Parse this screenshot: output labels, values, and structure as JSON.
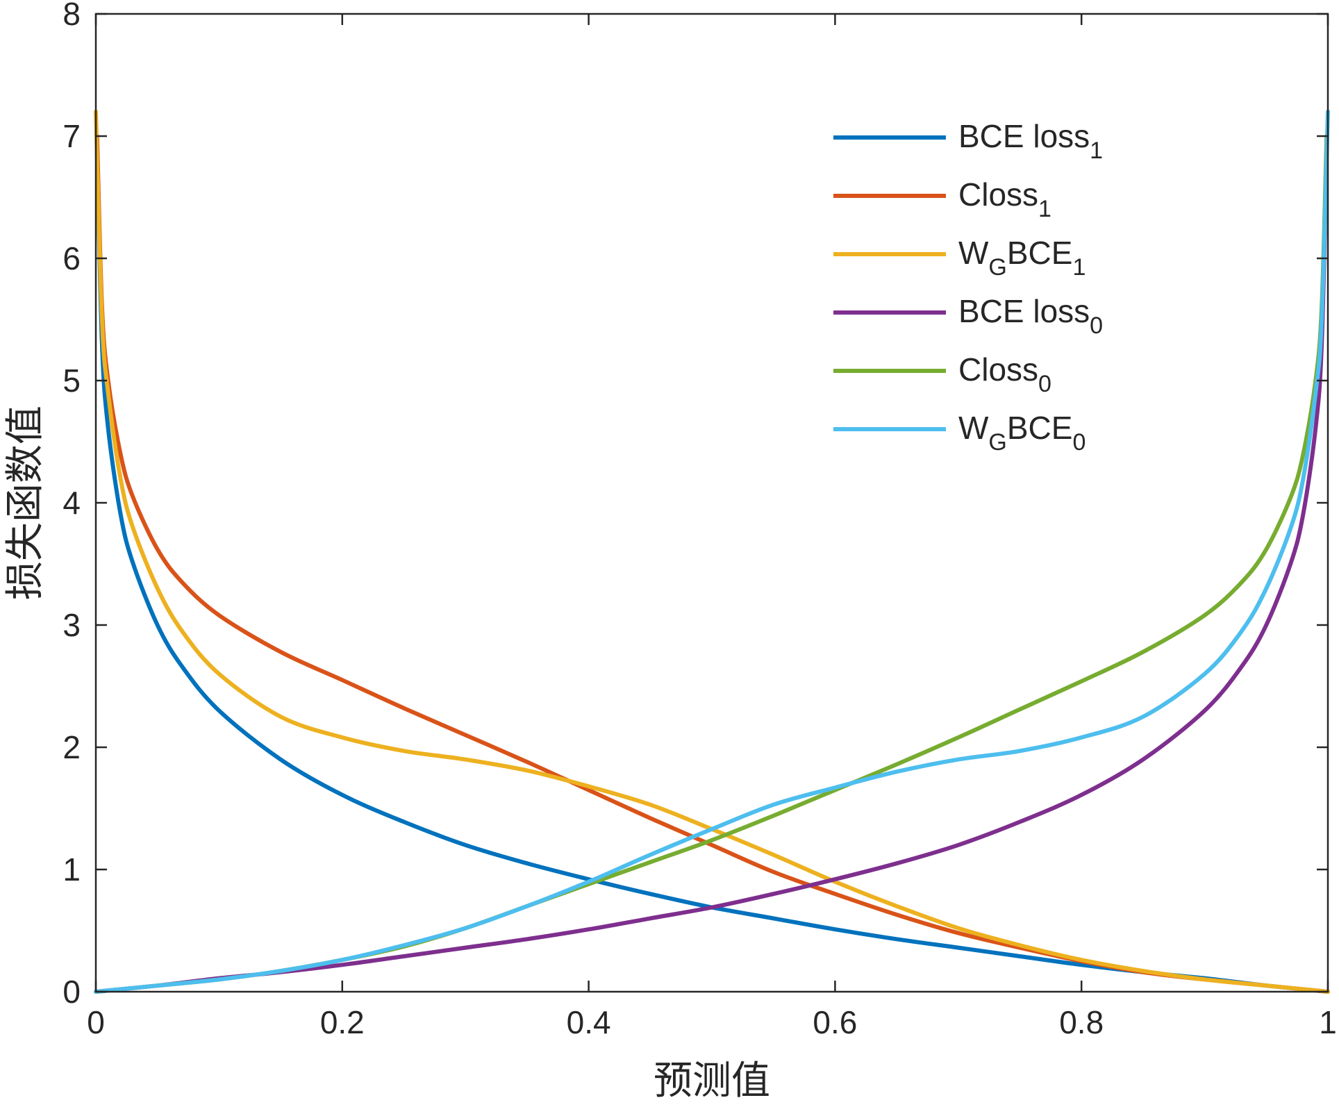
{
  "chart_data": {
    "type": "line",
    "xlabel": "预测值",
    "ylabel": "损失函数值",
    "xlim": [
      0,
      1
    ],
    "ylim": [
      0,
      8
    ],
    "x_ticks": [
      0,
      0.2,
      0.4,
      0.6,
      0.8,
      1
    ],
    "x_tick_labels": [
      "0",
      "0.2",
      "0.4",
      "0.6",
      "0.8",
      "1"
    ],
    "y_ticks": [
      0,
      1,
      2,
      3,
      4,
      5,
      6,
      7,
      8
    ],
    "y_tick_labels": [
      "0",
      "1",
      "2",
      "3",
      "4",
      "5",
      "6",
      "7",
      "8"
    ],
    "grid": false,
    "legend_position": "top-right",
    "series": [
      {
        "name": "BCE loss",
        "sub": "1",
        "color": "#0072BD",
        "points": [
          [
            0.001,
            6.91
          ],
          [
            0.005,
            5.3
          ],
          [
            0.01,
            4.61
          ],
          [
            0.02,
            3.91
          ],
          [
            0.03,
            3.51
          ],
          [
            0.05,
            3.0
          ],
          [
            0.07,
            2.66
          ],
          [
            0.1,
            2.3
          ],
          [
            0.15,
            1.9
          ],
          [
            0.2,
            1.61
          ],
          [
            0.25,
            1.39
          ],
          [
            0.3,
            1.2
          ],
          [
            0.35,
            1.05
          ],
          [
            0.4,
            0.92
          ],
          [
            0.45,
            0.8
          ],
          [
            0.5,
            0.69
          ],
          [
            0.55,
            0.6
          ],
          [
            0.6,
            0.51
          ],
          [
            0.65,
            0.43
          ],
          [
            0.7,
            0.36
          ],
          [
            0.75,
            0.29
          ],
          [
            0.8,
            0.22
          ],
          [
            0.85,
            0.16
          ],
          [
            0.9,
            0.11
          ],
          [
            0.95,
            0.05
          ],
          [
            1.0,
            0.0
          ]
        ]
      },
      {
        "name": "Closs",
        "sub": "1",
        "color": "#D95319",
        "points": [
          [
            0.001,
            7.0
          ],
          [
            0.005,
            5.6
          ],
          [
            0.01,
            5.0
          ],
          [
            0.02,
            4.4
          ],
          [
            0.03,
            4.05
          ],
          [
            0.05,
            3.62
          ],
          [
            0.07,
            3.35
          ],
          [
            0.1,
            3.08
          ],
          [
            0.15,
            2.78
          ],
          [
            0.2,
            2.55
          ],
          [
            0.25,
            2.32
          ],
          [
            0.3,
            2.1
          ],
          [
            0.35,
            1.88
          ],
          [
            0.4,
            1.65
          ],
          [
            0.45,
            1.42
          ],
          [
            0.5,
            1.2
          ],
          [
            0.55,
            0.98
          ],
          [
            0.6,
            0.8
          ],
          [
            0.65,
            0.63
          ],
          [
            0.7,
            0.48
          ],
          [
            0.75,
            0.36
          ],
          [
            0.8,
            0.25
          ],
          [
            0.85,
            0.16
          ],
          [
            0.9,
            0.1
          ],
          [
            0.95,
            0.05
          ],
          [
            1.0,
            0.0
          ]
        ]
      },
      {
        "name": "W",
        "mid": "G",
        "tail": "BCE",
        "sub": "1",
        "color": "#EDB120",
        "points": [
          [
            0.0,
            7.2
          ],
          [
            0.005,
            5.5
          ],
          [
            0.01,
            4.9
          ],
          [
            0.02,
            4.2
          ],
          [
            0.03,
            3.8
          ],
          [
            0.05,
            3.3
          ],
          [
            0.07,
            2.95
          ],
          [
            0.1,
            2.6
          ],
          [
            0.15,
            2.25
          ],
          [
            0.2,
            2.08
          ],
          [
            0.25,
            1.97
          ],
          [
            0.3,
            1.9
          ],
          [
            0.35,
            1.81
          ],
          [
            0.4,
            1.68
          ],
          [
            0.45,
            1.53
          ],
          [
            0.5,
            1.33
          ],
          [
            0.55,
            1.12
          ],
          [
            0.6,
            0.9
          ],
          [
            0.65,
            0.7
          ],
          [
            0.7,
            0.52
          ],
          [
            0.75,
            0.38
          ],
          [
            0.8,
            0.26
          ],
          [
            0.85,
            0.17
          ],
          [
            0.9,
            0.1
          ],
          [
            0.95,
            0.05
          ],
          [
            1.0,
            0.0
          ]
        ]
      },
      {
        "name": "BCE loss",
        "sub": "0",
        "color": "#7E2F8E",
        "points": [
          [
            0.0,
            0.0
          ],
          [
            0.05,
            0.05
          ],
          [
            0.1,
            0.11
          ],
          [
            0.15,
            0.16
          ],
          [
            0.2,
            0.22
          ],
          [
            0.25,
            0.29
          ],
          [
            0.3,
            0.36
          ],
          [
            0.35,
            0.43
          ],
          [
            0.4,
            0.51
          ],
          [
            0.45,
            0.6
          ],
          [
            0.5,
            0.69
          ],
          [
            0.55,
            0.8
          ],
          [
            0.6,
            0.92
          ],
          [
            0.65,
            1.05
          ],
          [
            0.7,
            1.2
          ],
          [
            0.75,
            1.39
          ],
          [
            0.8,
            1.61
          ],
          [
            0.85,
            1.9
          ],
          [
            0.9,
            2.3
          ],
          [
            0.93,
            2.66
          ],
          [
            0.95,
            3.0
          ],
          [
            0.97,
            3.51
          ],
          [
            0.98,
            3.91
          ],
          [
            0.99,
            4.61
          ],
          [
            0.995,
            5.3
          ],
          [
            0.999,
            6.91
          ]
        ]
      },
      {
        "name": "Closs",
        "sub": "0",
        "color": "#77AC30",
        "points": [
          [
            0.0,
            0.0
          ],
          [
            0.05,
            0.05
          ],
          [
            0.1,
            0.1
          ],
          [
            0.15,
            0.17
          ],
          [
            0.2,
            0.26
          ],
          [
            0.25,
            0.37
          ],
          [
            0.3,
            0.52
          ],
          [
            0.35,
            0.7
          ],
          [
            0.4,
            0.88
          ],
          [
            0.45,
            1.06
          ],
          [
            0.5,
            1.24
          ],
          [
            0.55,
            1.44
          ],
          [
            0.6,
            1.65
          ],
          [
            0.65,
            1.86
          ],
          [
            0.7,
            2.08
          ],
          [
            0.75,
            2.31
          ],
          [
            0.8,
            2.54
          ],
          [
            0.85,
            2.78
          ],
          [
            0.9,
            3.08
          ],
          [
            0.93,
            3.35
          ],
          [
            0.95,
            3.62
          ],
          [
            0.97,
            4.05
          ],
          [
            0.98,
            4.4
          ],
          [
            0.99,
            5.0
          ],
          [
            0.995,
            5.6
          ],
          [
            0.999,
            7.0
          ]
        ]
      },
      {
        "name": "W",
        "mid": "G",
        "tail": "BCE",
        "sub": "0",
        "color": "#4DBEEE",
        "points": [
          [
            0.0,
            0.0
          ],
          [
            0.05,
            0.05
          ],
          [
            0.1,
            0.1
          ],
          [
            0.15,
            0.17
          ],
          [
            0.2,
            0.26
          ],
          [
            0.25,
            0.38
          ],
          [
            0.3,
            0.52
          ],
          [
            0.35,
            0.7
          ],
          [
            0.4,
            0.9
          ],
          [
            0.45,
            1.12
          ],
          [
            0.5,
            1.33
          ],
          [
            0.55,
            1.53
          ],
          [
            0.6,
            1.67
          ],
          [
            0.65,
            1.8
          ],
          [
            0.7,
            1.9
          ],
          [
            0.75,
            1.97
          ],
          [
            0.8,
            2.08
          ],
          [
            0.85,
            2.25
          ],
          [
            0.9,
            2.6
          ],
          [
            0.93,
            2.95
          ],
          [
            0.95,
            3.3
          ],
          [
            0.97,
            3.8
          ],
          [
            0.98,
            4.2
          ],
          [
            0.99,
            4.9
          ],
          [
            0.995,
            5.5
          ],
          [
            1.0,
            7.2
          ]
        ]
      }
    ]
  }
}
